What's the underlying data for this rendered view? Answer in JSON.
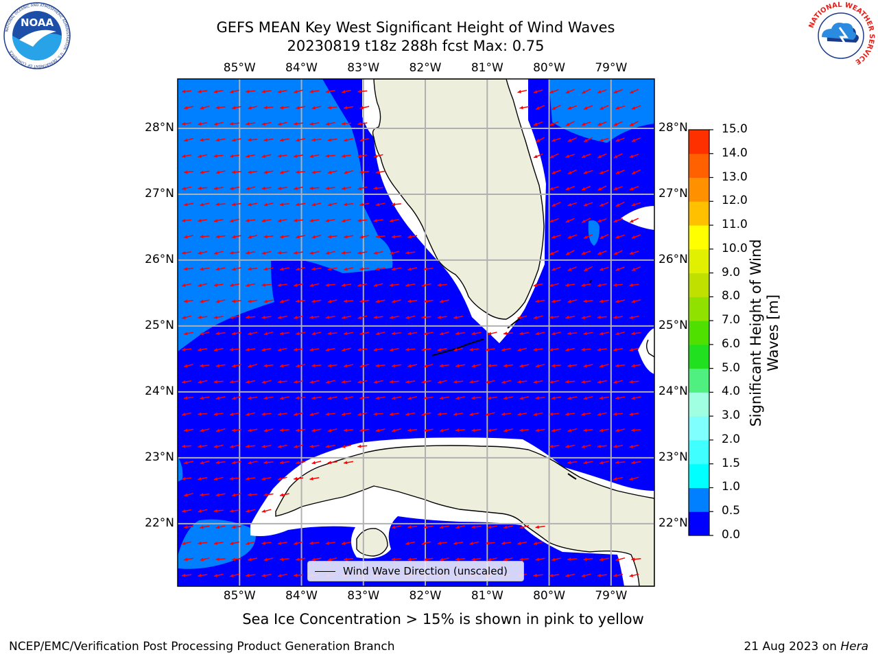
{
  "title": {
    "line1": "GEFS MEAN Key West Significant Height of Wind Waves",
    "line2": "20230819 t18z 288h fcst   Max: 0.75"
  },
  "logos": {
    "left": {
      "icon": "noaa-logo",
      "text": "NOAA",
      "ring_text": "NATIONAL OCEANIC AND ATMOSPHERIC ADMINISTRATION · U.S. DEPARTMENT OF COMMERCE"
    },
    "right": {
      "icon": "nws-logo",
      "ring_text": "NATIONAL WEATHER SERVICE"
    }
  },
  "map": {
    "lon_ticks": [
      "85°W",
      "84°W",
      "83°W",
      "82°W",
      "81°W",
      "80°W",
      "79°W"
    ],
    "lat_ticks": [
      "28°N",
      "27°N",
      "26°N",
      "25°N",
      "24°N",
      "23°N",
      "22°N"
    ],
    "extent": {
      "lon": [
        -86.0,
        -78.3
      ],
      "lat": [
        21.05,
        28.75
      ]
    },
    "land_color": "#eeeedd",
    "ocean_color_low": "#0000ff",
    "ocean_color_mid": "#0080ff",
    "arrow_color": "#ff0000",
    "legend": "Wind Wave Direction (unscaled)"
  },
  "colorbar": {
    "title": "Significant Height of Wind Waves [m]",
    "levels": [
      "0.0",
      "0.5",
      "1.0",
      "1.5",
      "2.0",
      "3.0",
      "4.0",
      "5.0",
      "6.0",
      "7.0",
      "8.0",
      "9.0",
      "10.0",
      "11.0",
      "12.0",
      "13.0",
      "14.0",
      "15.0"
    ],
    "colors": [
      "#0000ff",
      "#0080ff",
      "#00ffff",
      "#40ffff",
      "#80ffff",
      "#a0ffe0",
      "#50f080",
      "#20e020",
      "#50e000",
      "#90e000",
      "#c0e000",
      "#e0f000",
      "#ffff00",
      "#ffc000",
      "#ff9000",
      "#ff6000",
      "#ff3000"
    ]
  },
  "ice_note": "Sea Ice Concentration > 15% is shown in pink to yellow",
  "footer": {
    "left": "NCEP/EMC/Verification Post Processing Product Generation Branch",
    "right_prefix": "21 Aug 2023 on ",
    "right_host": "Hera"
  }
}
